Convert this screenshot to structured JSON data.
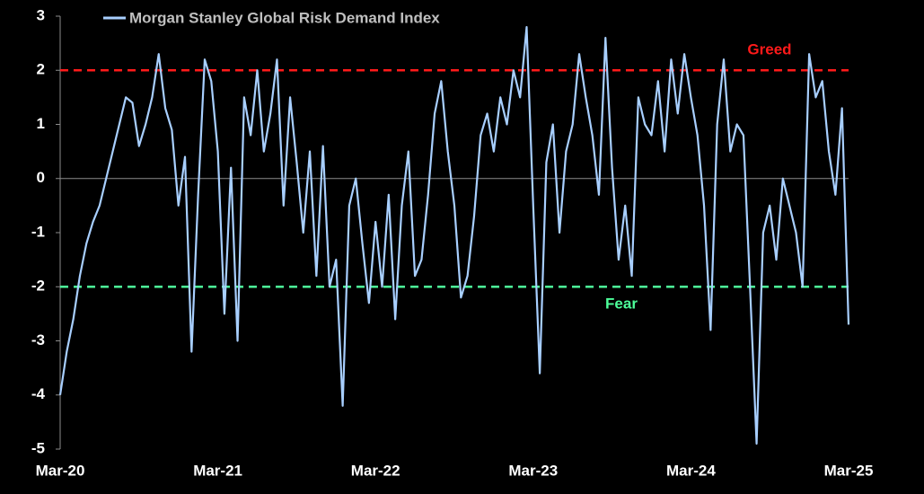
{
  "chart_data": {
    "type": "line",
    "categories": [
      "Mar-20",
      null,
      null,
      null,
      null,
      null,
      null,
      null,
      null,
      null,
      null,
      null,
      null,
      null,
      null,
      null,
      null,
      null,
      null,
      null,
      null,
      null,
      null,
      null,
      "Mar-21",
      null,
      null,
      null,
      null,
      null,
      null,
      null,
      null,
      null,
      null,
      null,
      null,
      null,
      null,
      null,
      null,
      null,
      null,
      null,
      null,
      null,
      null,
      null,
      "Mar-22",
      null,
      null,
      null,
      null,
      null,
      null,
      null,
      null,
      null,
      null,
      null,
      null,
      null,
      null,
      null,
      null,
      null,
      null,
      null,
      null,
      null,
      null,
      null,
      "Mar-23",
      null,
      null,
      null,
      null,
      null,
      null,
      null,
      null,
      null,
      null,
      null,
      null,
      null,
      null,
      null,
      null,
      null,
      null,
      null,
      null,
      null,
      null,
      null,
      "Mar-24",
      null,
      null,
      null,
      null,
      null,
      null,
      null,
      null,
      null,
      null,
      null,
      null,
      null,
      null,
      null,
      null,
      null,
      null,
      null,
      null,
      null,
      null,
      null,
      "Mar-25"
    ],
    "series": [
      {
        "name": "Morgan Stanley Global Risk Demand Index",
        "color": "#a8cfff",
        "values": [
          -4,
          -3.2,
          -2.6,
          -1.8,
          -1.2,
          -0.8,
          -0.5,
          0,
          0.5,
          1.0,
          1.5,
          1.4,
          0.6,
          1.0,
          1.5,
          2.3,
          1.3,
          0.9,
          -0.5,
          0.4,
          -3.2,
          -0.3,
          2.2,
          1.8,
          0.5,
          -2.5,
          0.2,
          -3.0,
          1.5,
          0.8,
          2.0,
          0.5,
          1.2,
          2.2,
          -0.5,
          1.5,
          0.3,
          -1.0,
          0.5,
          -1.8,
          0.6,
          -2.0,
          -1.5,
          -4.2,
          -0.5,
          0,
          -1.2,
          -2.3,
          -0.8,
          -2.0,
          -0.3,
          -2.6,
          -0.5,
          0.5,
          -1.8,
          -1.5,
          -0.3,
          1.2,
          1.8,
          0.5,
          -0.5,
          -2.2,
          -1.8,
          -0.7,
          0.8,
          1.2,
          0.5,
          1.5,
          1.0,
          2.0,
          1.5,
          2.8,
          -0.5,
          -3.6,
          0.3,
          1.0,
          -1.0,
          0.5,
          1.0,
          2.3,
          1.5,
          0.8,
          -0.3,
          2.6,
          0.2,
          -1.5,
          -0.5,
          -1.8,
          1.5,
          1.0,
          0.8,
          1.8,
          0.5,
          2.2,
          1.2,
          2.3,
          1.5,
          0.8,
          -0.5,
          -2.8,
          1.0,
          2.2,
          0.5,
          1.0,
          0.8,
          -2.0,
          -4.9,
          -1.0,
          -0.5,
          -1.5,
          0.0,
          -0.5,
          -1.0,
          -2.0,
          2.3,
          1.5,
          1.8,
          0.5,
          -0.3,
          1.3,
          -2.7
        ]
      }
    ],
    "ylim": [
      -5,
      3
    ],
    "yticks": [
      -5,
      -4,
      -3,
      -2,
      -1,
      0,
      1,
      2,
      3
    ],
    "hlines": [
      {
        "value": 2,
        "label": "Greed",
        "color": "#ff1a1a"
      },
      {
        "value": -2,
        "label": "Fear",
        "color": "#4dff9a"
      }
    ]
  }
}
